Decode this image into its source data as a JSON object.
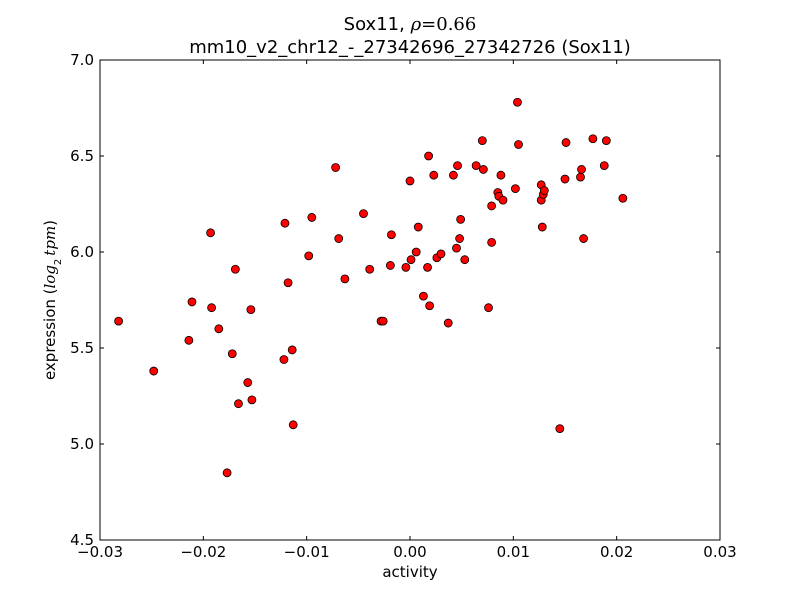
{
  "chart_data": {
    "type": "scatter",
    "title_line1_prefix": "Sox11, ",
    "title_line1_symbol": "ρ",
    "title_line1_suffix": "=0.66",
    "title_line2": "mm10_v2_chr12_-_27342696_27342726 (Sox11)",
    "xlabel": "activity",
    "ylabel_prefix": "expression (",
    "ylabel_math_log": "log",
    "ylabel_math_sub": "2",
    "ylabel_math_tpm": "tpm",
    "ylabel_suffix": ")",
    "xlim": [
      -0.03,
      0.03
    ],
    "ylim": [
      4.5,
      7.0
    ],
    "x_ticks": [
      -0.03,
      -0.02,
      -0.01,
      0.0,
      0.01,
      0.02,
      0.03
    ],
    "x_tick_labels": [
      "−0.03",
      "−0.02",
      "−0.01",
      "0.00",
      "0.01",
      "0.02",
      "0.03"
    ],
    "y_ticks": [
      4.5,
      5.0,
      5.5,
      6.0,
      6.5,
      7.0
    ],
    "y_tick_labels": [
      "4.5",
      "5.0",
      "5.5",
      "6.0",
      "6.5",
      "7.0"
    ],
    "grid": false,
    "marker_color": "#ff0000",
    "marker_edge_color": "#000000",
    "points": [
      [
        -0.0282,
        5.64
      ],
      [
        -0.0248,
        5.38
      ],
      [
        -0.0214,
        5.54
      ],
      [
        -0.0211,
        5.74
      ],
      [
        -0.0193,
        6.1
      ],
      [
        -0.0192,
        5.71
      ],
      [
        -0.0185,
        5.6
      ],
      [
        -0.0177,
        4.85
      ],
      [
        -0.0172,
        5.47
      ],
      [
        -0.0169,
        5.91
      ],
      [
        -0.0166,
        5.21
      ],
      [
        -0.0157,
        5.32
      ],
      [
        -0.0154,
        5.7
      ],
      [
        -0.0153,
        5.23
      ],
      [
        -0.0122,
        5.44
      ],
      [
        -0.0121,
        6.15
      ],
      [
        -0.0118,
        5.84
      ],
      [
        -0.0114,
        5.49
      ],
      [
        -0.0113,
        5.1
      ],
      [
        -0.0098,
        5.98
      ],
      [
        -0.0095,
        6.18
      ],
      [
        -0.0072,
        6.44
      ],
      [
        -0.0069,
        6.07
      ],
      [
        -0.0063,
        5.86
      ],
      [
        -0.0045,
        6.2
      ],
      [
        -0.0039,
        5.91
      ],
      [
        -0.0028,
        5.64
      ],
      [
        -0.0026,
        5.64
      ],
      [
        -0.0019,
        5.93
      ],
      [
        -0.0018,
        6.09
      ],
      [
        -0.0004,
        5.92
      ],
      [
        0.0,
        6.37
      ],
      [
        0.0001,
        5.96
      ],
      [
        0.0006,
        6.0
      ],
      [
        0.0008,
        6.13
      ],
      [
        0.0013,
        5.77
      ],
      [
        0.0017,
        5.92
      ],
      [
        0.0018,
        6.5
      ],
      [
        0.0019,
        5.72
      ],
      [
        0.0023,
        6.4
      ],
      [
        0.0026,
        5.97
      ],
      [
        0.003,
        5.99
      ],
      [
        0.0037,
        5.63
      ],
      [
        0.0042,
        6.4
      ],
      [
        0.0045,
        6.02
      ],
      [
        0.0046,
        6.45
      ],
      [
        0.0048,
        6.07
      ],
      [
        0.0049,
        6.17
      ],
      [
        0.0053,
        5.96
      ],
      [
        0.0064,
        6.45
      ],
      [
        0.007,
        6.58
      ],
      [
        0.0071,
        6.43
      ],
      [
        0.0076,
        5.71
      ],
      [
        0.0079,
        6.05
      ],
      [
        0.0079,
        6.24
      ],
      [
        0.0085,
        6.31
      ],
      [
        0.0086,
        6.29
      ],
      [
        0.0088,
        6.4
      ],
      [
        0.009,
        6.27
      ],
      [
        0.0102,
        6.33
      ],
      [
        0.0104,
        6.78
      ],
      [
        0.0105,
        6.56
      ],
      [
        0.0127,
        6.35
      ],
      [
        0.0127,
        6.27
      ],
      [
        0.0128,
        6.13
      ],
      [
        0.0129,
        6.3
      ],
      [
        0.013,
        6.32
      ],
      [
        0.0145,
        5.08
      ],
      [
        0.015,
        6.38
      ],
      [
        0.0151,
        6.57
      ],
      [
        0.0165,
        6.39
      ],
      [
        0.0166,
        6.43
      ],
      [
        0.0168,
        6.07
      ],
      [
        0.0177,
        6.59
      ],
      [
        0.0188,
        6.45
      ],
      [
        0.019,
        6.58
      ],
      [
        0.0206,
        6.28
      ]
    ]
  }
}
